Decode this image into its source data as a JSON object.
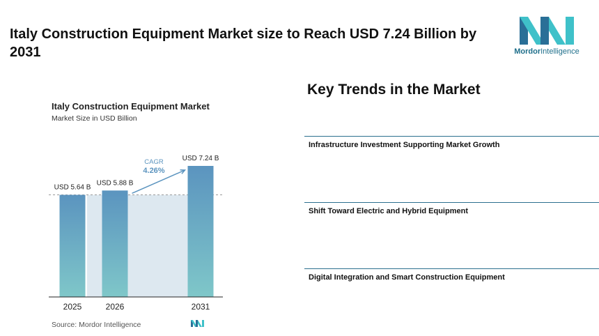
{
  "header": {
    "title": "Italy Construction Equipment Market size to Reach USD 7.24 Billion by 2031",
    "logo_text_bold": "Mordor",
    "logo_text_rest": "Intelligence"
  },
  "colors": {
    "bar_top": "#5b94bf",
    "bar_bottom": "#7fc7c9",
    "panel": "#dde8f0",
    "accent": "#2b6f8e",
    "logo_teal": "#3fc1c9",
    "logo_blue": "#2a6f97"
  },
  "chart_data": {
    "type": "bar",
    "title": "Italy Construction Equipment Market",
    "subtitle": "Market Size in USD Billion",
    "categories": [
      "2025",
      "2026",
      "2031"
    ],
    "values": [
      5.64,
      5.88,
      7.24
    ],
    "data_labels": [
      "USD 5.64 B",
      "USD 5.88 B",
      "USD 7.24 B"
    ],
    "ylim": [
      0,
      7.24
    ],
    "reference_line": 5.64,
    "annotation": {
      "label": "CAGR",
      "value": "4.26%"
    },
    "source": "Source: Mordor Intelligence"
  },
  "trends": {
    "title": "Key Trends in the Market",
    "items": [
      {
        "label": "Infrastructure Investment Supporting Market Growth"
      },
      {
        "label": "Shift Toward Electric and Hybrid Equipment"
      },
      {
        "label": "Digital Integration and Smart Construction Equipment"
      }
    ]
  }
}
